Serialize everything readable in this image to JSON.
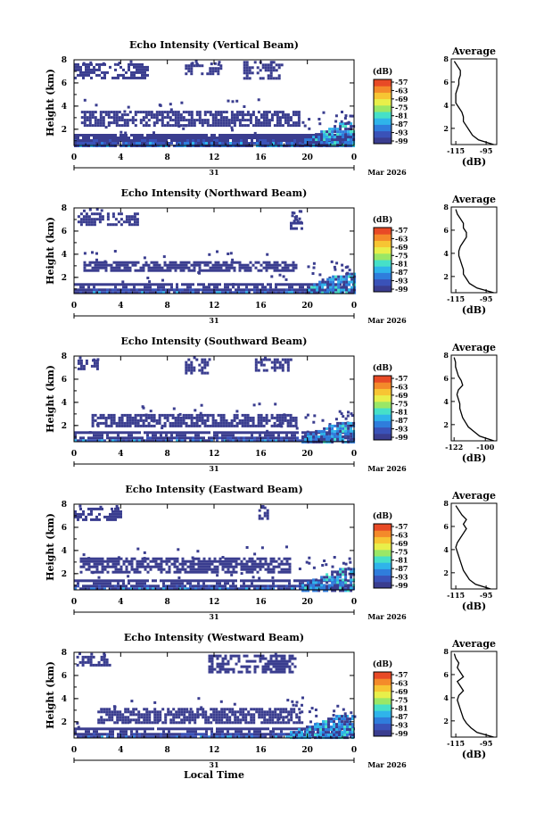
{
  "chart_data": [
    {
      "type": "heatmap",
      "title": "Echo Intensity (Vertical Beam)",
      "ylabel": "Height (km)",
      "x_ticks": [
        "0",
        "4",
        "8",
        "12",
        "16",
        "20",
        "0"
      ],
      "y_ticks": [
        "2",
        "4",
        "6",
        "8"
      ],
      "xlim": [
        0,
        24
      ],
      "ylim": [
        0.6,
        8
      ],
      "date_mark": "31",
      "date_label": "Mar 2026",
      "colorbar": {
        "label": "(dB)",
        "ticks": [
          "-57",
          "-63",
          "-69",
          "-75",
          "-81",
          "-87",
          "-93",
          "-99"
        ]
      },
      "layers": [
        {
          "type": "high_cloud",
          "t": [
            0,
            6.2
          ],
          "h": [
            6.4,
            7.7
          ]
        },
        {
          "type": "high_cloud",
          "t": [
            9.5,
            12.5
          ],
          "h": [
            6.8,
            7.6
          ]
        },
        {
          "type": "high_cloud",
          "t": [
            14.5,
            17.8
          ],
          "h": [
            6.5,
            7.9
          ]
        },
        {
          "type": "mid_cloud",
          "t": [
            0.6,
            19.2
          ],
          "h": [
            2.4,
            3.6
          ]
        },
        {
          "type": "low_echo",
          "t": [
            0,
            24
          ],
          "h": [
            0.6,
            1.6
          ]
        },
        {
          "type": "rising_band",
          "t": [
            19.5,
            24
          ],
          "h": [
            0.6,
            2.6
          ]
        }
      ],
      "profile": {
        "title": "Average",
        "xlabel": "(dB)",
        "x_ticks": [
          "-115",
          "-95"
        ],
        "xlim": [
          -118,
          -88
        ],
        "y_ticks": [
          "2",
          "4",
          "6",
          "8"
        ],
        "ylim": [
          0.6,
          8
        ],
        "height": [
          0.6,
          1.0,
          1.4,
          1.8,
          2.2,
          2.6,
          3.0,
          3.4,
          3.8,
          4.2,
          4.6,
          5.0,
          5.4,
          5.8,
          6.2,
          6.6,
          7.0,
          7.4,
          7.8
        ],
        "value": [
          -90,
          -100,
          -104,
          -106,
          -108,
          -110,
          -110,
          -111,
          -113,
          -115,
          -115,
          -115,
          -114,
          -113,
          -113,
          -112,
          -112,
          -114,
          -116
        ]
      }
    },
    {
      "type": "heatmap",
      "title": "Echo Intensity (Northward Beam)",
      "ylabel": "Height (km)",
      "x_ticks": [
        "0",
        "4",
        "8",
        "12",
        "16",
        "20",
        "0"
      ],
      "y_ticks": [
        "2",
        "4",
        "6",
        "8"
      ],
      "xlim": [
        0,
        24
      ],
      "ylim": [
        0.6,
        8
      ],
      "date_mark": "31",
      "date_label": "Mar 2026",
      "colorbar": {
        "label": "(dB)",
        "ticks": [
          "-57",
          "-63",
          "-69",
          "-75",
          "-81",
          "-87",
          "-93",
          "-99"
        ]
      },
      "layers": [
        {
          "type": "high_cloud",
          "t": [
            0.3,
            5.5
          ],
          "h": [
            6.6,
            7.6
          ]
        },
        {
          "type": "high_cloud",
          "t": [
            18.5,
            19.5
          ],
          "h": [
            6.2,
            6.8
          ]
        },
        {
          "type": "mid_cloud",
          "t": [
            0.8,
            19.0
          ],
          "h": [
            2.6,
            3.4
          ]
        },
        {
          "type": "low_echo",
          "t": [
            0,
            24
          ],
          "h": [
            0.6,
            1.5
          ]
        },
        {
          "type": "rising_band",
          "t": [
            19.8,
            24
          ],
          "h": [
            0.6,
            2.4
          ]
        }
      ],
      "profile": {
        "title": "Average",
        "xlabel": "(dB)",
        "x_ticks": [
          "-115",
          "-95"
        ],
        "xlim": [
          -118,
          -88
        ],
        "y_ticks": [
          "2",
          "4",
          "6",
          "8"
        ],
        "ylim": [
          0.6,
          8
        ],
        "height": [
          0.6,
          1.0,
          1.4,
          1.8,
          2.2,
          2.6,
          3.0,
          3.4,
          3.8,
          4.2,
          4.6,
          5.0,
          5.4,
          5.8,
          6.2,
          6.6,
          7.0,
          7.4,
          7.8
        ],
        "value": [
          -90,
          -101,
          -106,
          -108,
          -110,
          -110,
          -111,
          -112,
          -113,
          -113,
          -112,
          -110,
          -108,
          -108,
          -110,
          -110,
          -112,
          -114,
          -115
        ]
      }
    },
    {
      "type": "heatmap",
      "title": "Echo Intensity (Southward Beam)",
      "ylabel": "Height (km)",
      "x_ticks": [
        "0",
        "4",
        "8",
        "12",
        "16",
        "20",
        "0"
      ],
      "y_ticks": [
        "2",
        "4",
        "6",
        "8"
      ],
      "xlim": [
        0,
        24
      ],
      "ylim": [
        0.6,
        8
      ],
      "date_mark": "31",
      "date_label": "Mar 2026",
      "colorbar": {
        "label": "(dB)",
        "ticks": [
          "-57",
          "-63",
          "-69",
          "-75",
          "-81",
          "-87",
          "-93",
          "-99"
        ]
      },
      "layers": [
        {
          "type": "high_cloud",
          "t": [
            0.3,
            2.0
          ],
          "h": [
            6.8,
            7.7
          ]
        },
        {
          "type": "high_cloud",
          "t": [
            9.5,
            11.5
          ],
          "h": [
            6.5,
            7.8
          ]
        },
        {
          "type": "high_cloud",
          "t": [
            15.5,
            18.5
          ],
          "h": [
            6.8,
            7.8
          ]
        },
        {
          "type": "mid_cloud",
          "t": [
            1.5,
            19.0
          ],
          "h": [
            2.0,
            3.0
          ]
        },
        {
          "type": "low_echo",
          "t": [
            0,
            24
          ],
          "h": [
            0.6,
            1.5
          ]
        },
        {
          "type": "rising_band",
          "t": [
            19.5,
            24
          ],
          "h": [
            0.6,
            2.3
          ]
        }
      ],
      "profile": {
        "title": "Average",
        "xlabel": "(dB)",
        "x_ticks": [
          "-122",
          "-100"
        ],
        "xlim": [
          -124,
          -92
        ],
        "y_ticks": [
          "2",
          "4",
          "6",
          "8"
        ],
        "ylim": [
          0.6,
          8
        ],
        "height": [
          0.6,
          1.0,
          1.4,
          1.8,
          2.2,
          2.6,
          3.0,
          3.4,
          3.8,
          4.2,
          4.6,
          5.0,
          5.4,
          5.8,
          6.2,
          6.6,
          7.0,
          7.4,
          7.8
        ],
        "value": [
          -94,
          -104,
          -108,
          -112,
          -114,
          -116,
          -117,
          -118,
          -118,
          -119,
          -120,
          -119,
          -116,
          -117,
          -119,
          -120,
          -121,
          -121,
          -122
        ]
      }
    },
    {
      "type": "heatmap",
      "title": "Echo Intensity (Eastward Beam)",
      "ylabel": "Height (km)",
      "x_ticks": [
        "0",
        "4",
        "8",
        "12",
        "16",
        "20",
        "0"
      ],
      "y_ticks": [
        "2",
        "4",
        "6",
        "8"
      ],
      "xlim": [
        0,
        24
      ],
      "ylim": [
        0.6,
        8
      ],
      "date_mark": "31",
      "date_label": "Mar 2026",
      "colorbar": {
        "label": "(dB)",
        "ticks": [
          "-57",
          "-63",
          "-69",
          "-75",
          "-81",
          "-87",
          "-93",
          "-99"
        ]
      },
      "layers": [
        {
          "type": "high_cloud",
          "t": [
            0,
            4.0
          ],
          "h": [
            6.6,
            7.7
          ]
        },
        {
          "type": "high_cloud",
          "t": [
            15.8,
            16.6
          ],
          "h": [
            6.8,
            7.8
          ]
        },
        {
          "type": "mid_cloud",
          "t": [
            0.5,
            18.5
          ],
          "h": [
            2.2,
            3.4
          ]
        },
        {
          "type": "low_echo",
          "t": [
            0,
            24
          ],
          "h": [
            0.6,
            1.5
          ]
        },
        {
          "type": "rising_band",
          "t": [
            19.5,
            24
          ],
          "h": [
            0.6,
            2.5
          ]
        }
      ],
      "profile": {
        "title": "Average",
        "xlabel": "(dB)",
        "x_ticks": [
          "-115",
          "-95"
        ],
        "xlim": [
          -118,
          -88
        ],
        "y_ticks": [
          "2",
          "4",
          "6",
          "8"
        ],
        "ylim": [
          0.6,
          8
        ],
        "height": [
          0.6,
          1.0,
          1.4,
          1.8,
          2.2,
          2.6,
          3.0,
          3.4,
          3.8,
          4.2,
          4.6,
          5.0,
          5.4,
          5.8,
          6.2,
          6.6,
          7.0,
          7.4,
          7.8
        ],
        "value": [
          -92,
          -102,
          -106,
          -108,
          -110,
          -111,
          -112,
          -113,
          -114,
          -115,
          -114,
          -112,
          -110,
          -108,
          -110,
          -108,
          -111,
          -113,
          -115
        ]
      }
    },
    {
      "type": "heatmap",
      "title": "Echo Intensity (Westward Beam)",
      "ylabel": "Height (km)",
      "x_ticks": [
        "0",
        "4",
        "8",
        "12",
        "16",
        "20",
        "0"
      ],
      "y_ticks": [
        "2",
        "4",
        "6",
        "8"
      ],
      "xlim": [
        0,
        24
      ],
      "ylim": [
        0.6,
        8
      ],
      "date_mark": "31",
      "date_label": "Mar 2026",
      "xlabel": "Local Time",
      "colorbar": {
        "label": "(dB)",
        "ticks": [
          "-57",
          "-63",
          "-69",
          "-75",
          "-81",
          "-87",
          "-93",
          "-99"
        ]
      },
      "layers": [
        {
          "type": "high_cloud",
          "t": [
            0.2,
            3.0
          ],
          "h": [
            6.8,
            7.7
          ]
        },
        {
          "type": "high_cloud",
          "t": [
            11.5,
            19.0
          ],
          "h": [
            6.4,
            7.8
          ]
        },
        {
          "type": "mid_cloud",
          "t": [
            2.0,
            19.5
          ],
          "h": [
            2.0,
            3.2
          ]
        },
        {
          "type": "low_echo",
          "t": [
            0,
            24
          ],
          "h": [
            0.6,
            1.5
          ]
        },
        {
          "type": "rising_band",
          "t": [
            18.5,
            24
          ],
          "h": [
            0.6,
            2.6
          ]
        }
      ],
      "profile": {
        "title": "Average",
        "xlabel": "(dB)",
        "x_ticks": [
          "-115",
          "-95"
        ],
        "xlim": [
          -118,
          -88
        ],
        "y_ticks": [
          "2",
          "4",
          "6",
          "8"
        ],
        "ylim": [
          0.6,
          8
        ],
        "height": [
          0.6,
          1.0,
          1.4,
          1.8,
          2.2,
          2.6,
          3.0,
          3.4,
          3.8,
          4.2,
          4.6,
          5.0,
          5.4,
          5.8,
          6.2,
          6.6,
          7.0,
          7.4,
          7.8
        ],
        "value": [
          -90,
          -101,
          -105,
          -108,
          -110,
          -111,
          -112,
          -113,
          -114,
          -113,
          -110,
          -112,
          -114,
          -110,
          -112,
          -114,
          -113,
          -115,
          -116
        ]
      }
    }
  ],
  "colors": {
    "colorbar": [
      "#3a3d8f",
      "#3a52b8",
      "#2f7ddc",
      "#2fb4ea",
      "#46e0c8",
      "#9ae766",
      "#e8ef4a",
      "#f7c533",
      "#f48a2a",
      "#e84a26"
    ],
    "cloud": "#3a3d8f",
    "axis": "#000000"
  }
}
